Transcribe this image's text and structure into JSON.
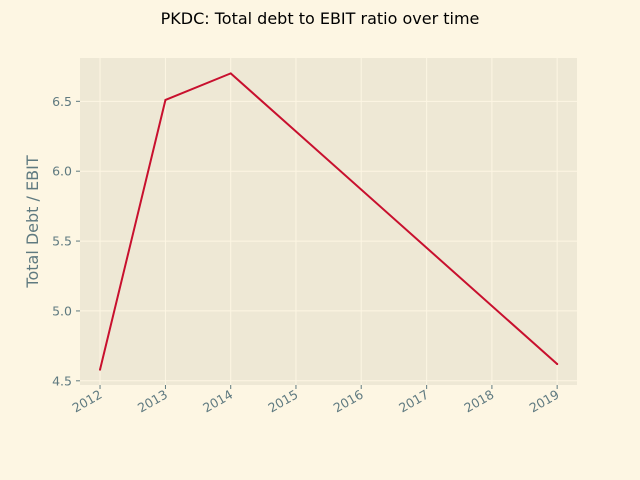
{
  "colors": {
    "page_bg": "#fdf6e3",
    "plot_bg": "#eee8d5",
    "grid": "#fdf6e3",
    "axis_text": "#5f7a80",
    "line": "#c8102e"
  },
  "chart_data": {
    "type": "line",
    "title": "PKDC: Total debt to EBIT ratio over time",
    "xlabel": "",
    "ylabel": "Total Debt / EBIT",
    "x": [
      "2012",
      "2013",
      "2014",
      "2015",
      "2016",
      "2017",
      "2018",
      "2019"
    ],
    "series": [
      {
        "values": [
          {
            "x": "2012-01-01",
            "y": 4.58
          },
          {
            "x": "2013-01-01",
            "y": 6.51
          },
          {
            "x": "2014-01-01",
            "y": 6.7
          },
          {
            "x": "2019-01-01",
            "y": 4.62
          }
        ]
      }
    ],
    "xlim": [
      "2011-09-11",
      "2019-04-22"
    ],
    "ylim": [
      4.47,
      6.81
    ],
    "yticks": [
      4.5,
      5.0,
      5.5,
      6.0,
      6.5
    ],
    "ytick_labels": [
      "4.5",
      "5.0",
      "5.5",
      "6.0",
      "6.5"
    ],
    "grid": true,
    "legend": "none"
  }
}
